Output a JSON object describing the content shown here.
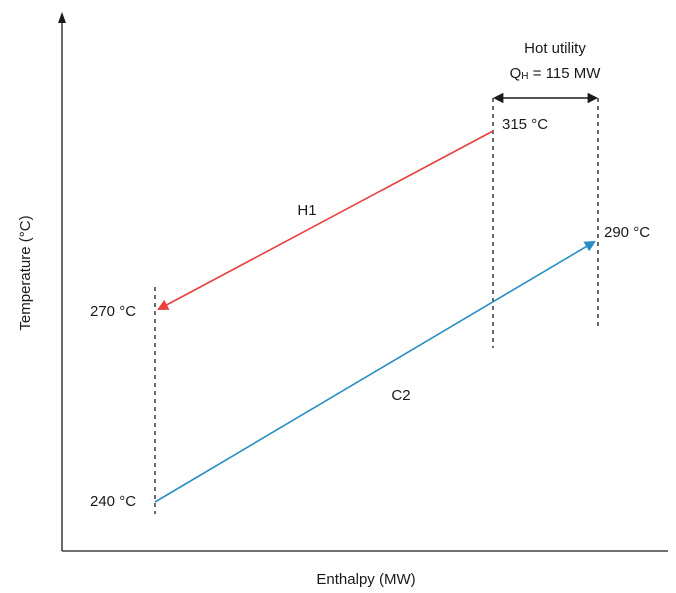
{
  "axes": {
    "x_label": "Enthalpy (MW)",
    "y_label": "Temperature (°C)"
  },
  "streams": {
    "hot": {
      "name": "H1",
      "start_temp": "315 °C",
      "end_temp": "270 °C",
      "color": "#e8413c"
    },
    "cold": {
      "name": "C2",
      "start_temp": "240 °C",
      "end_temp": "290 °C",
      "color": "#2a8ec4"
    }
  },
  "hot_utility": {
    "title": "Hot utility",
    "q_symbol": "Q",
    "q_subscript": "H",
    "q_value": " = 115 MW"
  }
}
